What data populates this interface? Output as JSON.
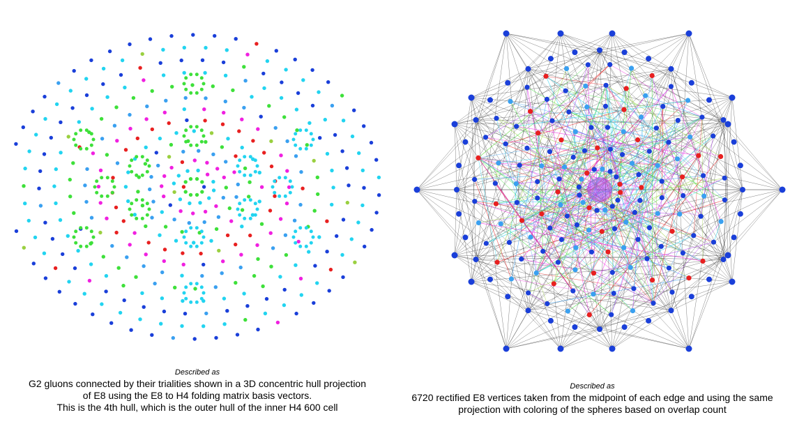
{
  "colors": {
    "blue": "#1a3fd9",
    "cyan": "#22d4f0",
    "sky": "#3aa0f0",
    "green": "#3ee03a",
    "magenta": "#f020e0",
    "red": "#e82020",
    "olive": "#9ad040",
    "violet": "#b040f0",
    "dark_edge": "#1a1a1a",
    "yellow": "#f4f0a0"
  },
  "left": {
    "described_as": "Described as",
    "caption_lines": [
      "G2 gluons connected by their trialities shown in a 3D concentric hull projection",
      "of E8 using the E8 to H4 folding matrix basis vectors.",
      "This is the 4th hull, which is the outer hull of the inner H4 600 cell"
    ]
  },
  "right": {
    "described_as": "Described as",
    "caption_lines": [
      "6720 rectified E8 vertices taken from the midpoint of each edge and using the same",
      "projection with coloring of the spheres based on overlap count"
    ]
  }
}
